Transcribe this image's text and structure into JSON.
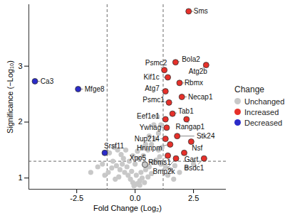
{
  "chart_data": {
    "type": "scatter",
    "x_label": "Fold Change (Log₂)",
    "y_label": "Significance (−Log₁₀)",
    "xlim": [
      -4.55,
      3.9
    ],
    "ylim": [
      0.8,
      4.1
    ],
    "xticks": [
      -2.5,
      {
        "value": 0,
        "label": "0.0"
      },
      2.5
    ],
    "yticks": [
      1,
      2,
      3
    ],
    "grid": false,
    "fold_change_cutoffs": [
      -1.2,
      1.2
    ],
    "significance_cutoff": 1.3,
    "legend": "right",
    "legend_title": "Change",
    "series": [
      {
        "name": "Unchanged",
        "color": "#c8c8c8",
        "x": [
          -1.1,
          -0.9,
          -0.75,
          -0.6,
          -0.5,
          -0.95,
          -0.8,
          -0.65,
          -0.45,
          -0.3,
          -0.2,
          -0.1,
          0.0,
          0.1,
          0.2,
          0.3,
          -0.55,
          -0.35,
          -0.15,
          0.05,
          0.25,
          0.45,
          0.6,
          0.75,
          0.9,
          1.05,
          -1.0,
          -1.15,
          -1.3,
          -1.6,
          -1.9,
          -1.4,
          -0.25,
          0.0,
          0.15,
          0.35,
          0.55,
          0.7,
          0.85,
          1.0,
          1.1,
          0.95,
          0.8,
          0.6,
          0.45,
          0.3,
          0.1,
          -0.1,
          -0.4,
          1.15,
          1.0,
          1.1,
          1.3,
          1.5,
          1.7,
          1.9,
          2.2,
          2.5,
          1.4,
          1.65,
          0.4,
          0.55,
          0.7,
          -0.7,
          -0.85,
          0.2,
          -0.05,
          0.42
        ],
        "y": [
          1.45,
          1.55,
          1.5,
          1.42,
          1.35,
          1.3,
          1.22,
          1.15,
          1.1,
          1.05,
          0.98,
          0.92,
          0.88,
          0.9,
          0.95,
          1.0,
          1.25,
          1.2,
          1.12,
          1.05,
          1.1,
          1.15,
          1.2,
          1.28,
          1.32,
          1.38,
          1.18,
          1.1,
          1.05,
          1.2,
          1.1,
          1.25,
          1.3,
          1.25,
          1.35,
          1.4,
          1.5,
          1.6,
          1.7,
          1.8,
          1.95,
          2.1,
          1.95,
          1.75,
          1.6,
          1.55,
          1.48,
          1.4,
          1.5,
          1.55,
          1.5,
          1.25,
          1.2,
          1.15,
          1.22,
          1.1,
          1.18,
          1.25,
          1.05,
          0.98,
          0.92,
          1.02,
          1.08,
          1.02,
          0.98,
          0.87,
          0.86,
          1.24
        ],
        "labels": [
          null,
          null,
          null,
          null,
          null,
          null,
          null,
          null,
          null,
          null,
          null,
          null,
          null,
          null,
          null,
          null,
          null,
          null,
          null,
          null,
          null,
          null,
          null,
          null,
          null,
          null,
          null,
          null,
          null,
          null,
          null,
          null,
          null,
          null,
          null,
          null,
          null,
          null,
          null,
          null,
          null,
          null,
          null,
          null,
          null,
          null,
          null,
          null,
          null,
          null,
          null,
          null,
          null,
          null,
          null,
          null,
          null,
          null,
          null,
          null,
          null,
          null,
          null,
          null,
          null,
          null,
          null,
          "Xpo5"
        ]
      },
      {
        "name": "Increased",
        "color": "#e6302a",
        "x": [
          2.29,
          3.04,
          1.73,
          1.25,
          1.4,
          1.9,
          1.3,
          2.0,
          1.45,
          1.6,
          1.3,
          2.2,
          1.35,
          1.8,
          1.3,
          1.5,
          2.4,
          2.1,
          1.4,
          2.95,
          1.75
        ],
        "y": [
          3.98,
          3.02,
          3.07,
          2.93,
          2.8,
          2.7,
          2.55,
          2.45,
          2.35,
          2.15,
          2.05,
          2.05,
          1.9,
          1.75,
          1.7,
          1.6,
          1.65,
          1.45,
          1.4,
          1.35,
          1.35
        ],
        "labels": [
          "Sms",
          "Atg2b",
          "Bola2",
          "Psmc2",
          "Kif1c",
          "Rbmx",
          "Atg7",
          "Necap1",
          "Psmc1",
          "Tab1",
          "Eef1e1",
          "Rangap1",
          "Ywhag",
          "Stk24",
          "Nup214",
          "Hnrnpm",
          "Nsf",
          "Gart",
          "Rbms1",
          "Bsdc1",
          "Bmp2k"
        ]
      },
      {
        "name": "Decreased",
        "color": "#2b2bc9",
        "x": [
          -4.29,
          -2.44,
          -1.3
        ],
        "y": [
          2.73,
          2.59,
          1.45
        ],
        "labels": [
          "Ca3",
          "Mfge8",
          "Srsf11"
        ]
      }
    ]
  }
}
